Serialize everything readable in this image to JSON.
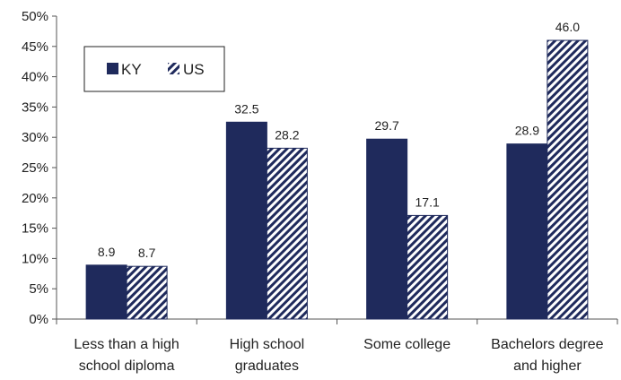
{
  "chart_data": {
    "type": "bar",
    "categories": [
      [
        "Less than a high",
        "school diploma"
      ],
      [
        "High school",
        "graduates"
      ],
      [
        "Some college"
      ],
      [
        "Bachelors degree",
        "and higher"
      ]
    ],
    "series": [
      {
        "name": "KY",
        "values": [
          8.9,
          32.5,
          29.7,
          28.9
        ],
        "data_labels": [
          "8.9",
          "32.5",
          "29.7",
          "28.9"
        ],
        "color": "#1f2a5c",
        "pattern": "solid"
      },
      {
        "name": "US",
        "values": [
          8.7,
          28.2,
          17.1,
          46.0
        ],
        "data_labels": [
          "8.7",
          "28.2",
          "17.1",
          "46.0"
        ],
        "color": "#1f2a5c",
        "pattern": "diagonal-hatch"
      }
    ],
    "yticks": [
      "0%",
      "5%",
      "10%",
      "15%",
      "20%",
      "25%",
      "30%",
      "35%",
      "40%",
      "45%",
      "50%"
    ],
    "ylim": [
      0,
      50
    ],
    "grid": false,
    "legend": "top-left"
  }
}
